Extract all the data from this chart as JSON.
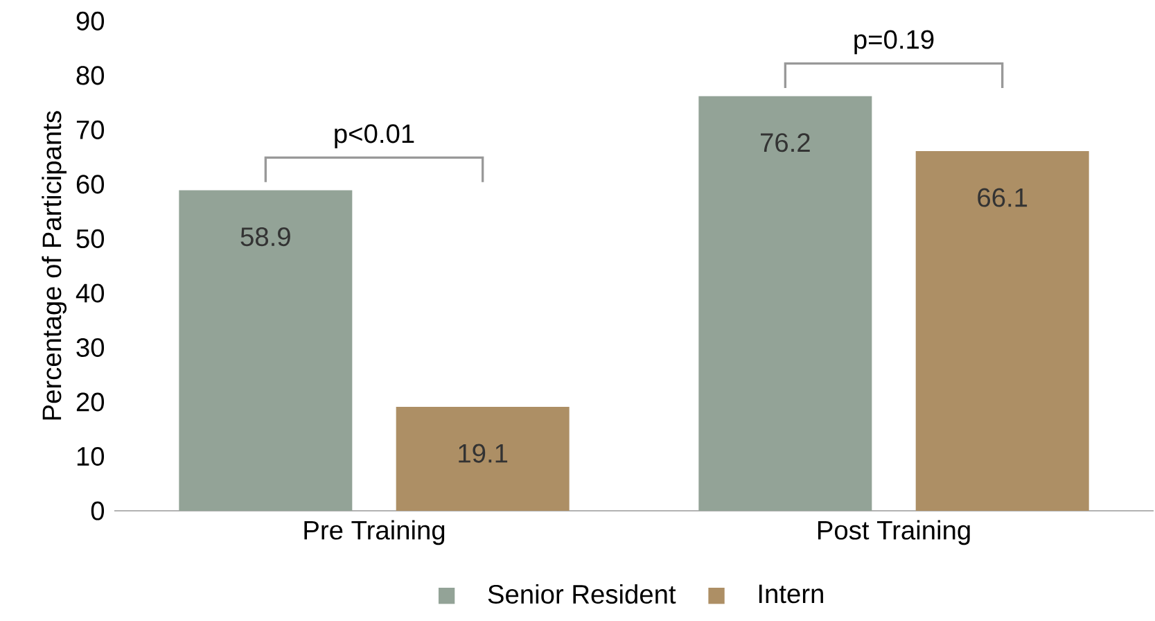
{
  "chart_data": {
    "type": "bar",
    "ylabel": "Percentage of Participants",
    "categories": [
      "Pre Training",
      "Post Training"
    ],
    "series": [
      {
        "name": "Senior Resident",
        "color": "#93a397",
        "values": [
          58.9,
          76.2
        ]
      },
      {
        "name": "Intern",
        "color": "#ad8f65",
        "values": [
          19.1,
          66.1
        ]
      }
    ],
    "ylim": [
      0,
      90
    ],
    "yticks": [
      0,
      10,
      20,
      30,
      40,
      50,
      60,
      70,
      80,
      90
    ],
    "data_labels": true,
    "legend": "bottom",
    "grid": false,
    "annotations": [
      "p<0.01",
      "p=0.19"
    ]
  }
}
